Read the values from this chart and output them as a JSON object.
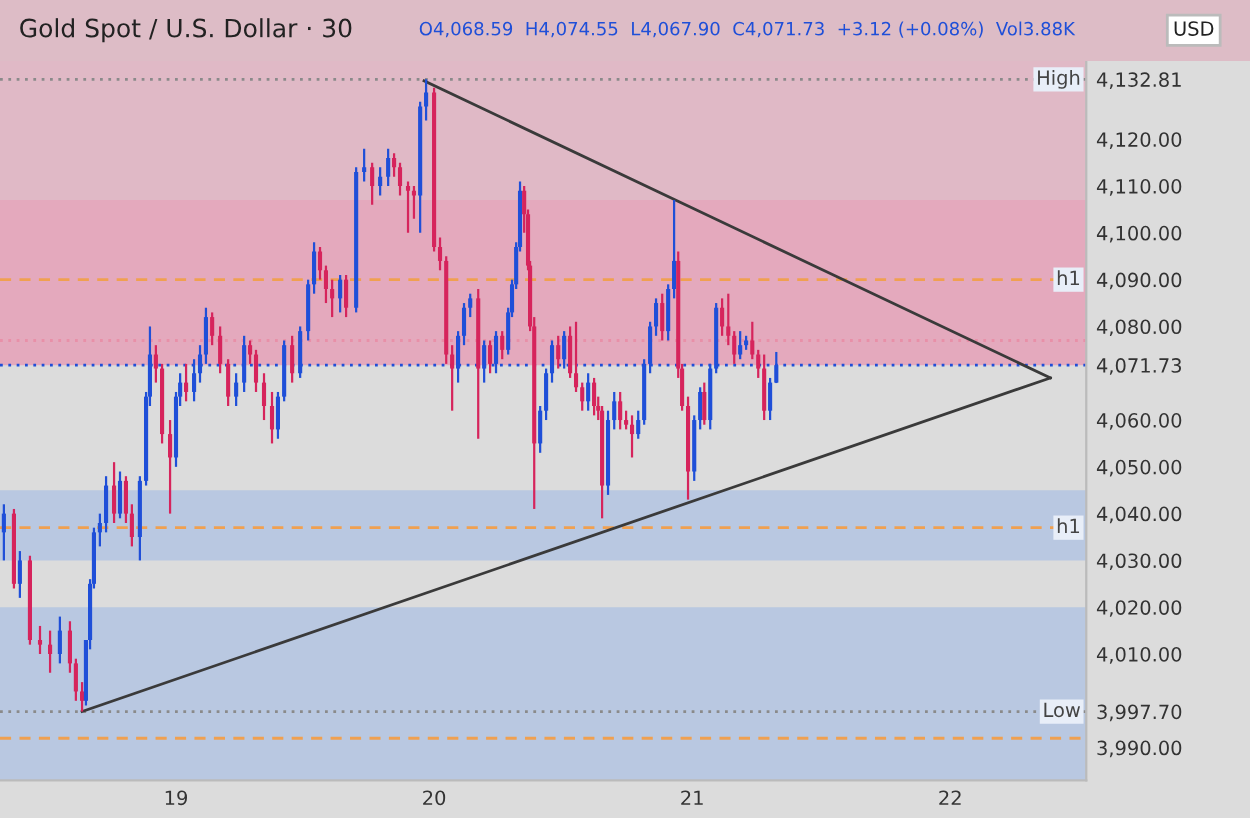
{
  "chart_data": {
    "type": "candlestick",
    "title": "Gold Spot / U.S. Dollar · 30",
    "subtitle": "O4,068.59  H4,074.55  L4,067.90  C4,071.73  +3.12 (+0.08%)  Vol3.88K",
    "annotations": [
      "USD"
    ],
    "x": [
      18.333,
      18.372,
      18.395,
      18.434,
      18.473,
      18.512,
      18.55,
      18.589,
      18.612,
      18.636,
      18.651,
      18.667,
      18.682,
      18.705,
      18.729,
      18.76,
      18.783,
      18.806,
      18.829,
      18.86,
      18.884,
      18.899,
      18.922,
      18.946,
      18.977,
      19.0,
      19.016,
      19.039,
      19.07,
      19.093,
      19.116,
      19.14,
      19.171,
      19.202,
      19.233,
      19.264,
      19.287,
      19.31,
      19.341,
      19.372,
      19.395,
      19.419,
      19.45,
      19.481,
      19.512,
      19.535,
      19.558,
      19.581,
      19.605,
      19.636,
      19.659,
      19.698,
      19.729,
      19.76,
      19.791,
      19.822,
      19.845,
      19.868,
      19.899,
      19.922,
      19.946,
      19.969,
      20.0,
      20.023,
      20.047,
      20.07,
      20.093,
      20.116,
      20.14,
      20.171,
      20.194,
      20.217,
      20.24,
      20.264,
      20.287,
      20.302,
      20.318,
      20.333,
      20.349,
      20.364,
      20.372,
      20.388,
      20.411,
      20.434,
      20.457,
      20.481,
      20.504,
      20.527,
      20.55,
      20.574,
      20.597,
      20.62,
      20.636,
      20.651,
      20.674,
      20.698,
      20.721,
      20.744,
      20.767,
      20.791,
      20.814,
      20.837,
      20.86,
      20.884,
      20.907,
      20.93,
      20.946,
      20.961,
      20.984,
      21.008,
      21.031,
      21.047,
      21.07,
      21.093,
      21.116,
      21.14,
      21.163,
      21.186,
      21.209,
      21.233,
      21.256,
      21.279,
      21.302,
      21.326
    ],
    "ohlc": [
      [
        4036,
        4042,
        4030,
        4040
      ],
      [
        4040,
        4041,
        4024,
        4025
      ],
      [
        4025,
        4032,
        4022,
        4030
      ],
      [
        4030,
        4031,
        4012,
        4013
      ],
      [
        4013,
        4016,
        4010,
        4012
      ],
      [
        4012,
        4015,
        4006,
        4010
      ],
      [
        4010,
        4018,
        4008,
        4015
      ],
      [
        4015,
        4017,
        4006,
        4008
      ],
      [
        4008,
        4009,
        4000,
        4002
      ],
      [
        4002,
        4004,
        3997.7,
        4000
      ],
      [
        4000,
        4013,
        3999,
        4013
      ],
      [
        4013,
        4026,
        4011,
        4025
      ],
      [
        4025,
        4037,
        4024,
        4036
      ],
      [
        4036,
        4040,
        4033,
        4038
      ],
      [
        4038,
        4048,
        4036,
        4046
      ],
      [
        4046,
        4051,
        4038,
        4040
      ],
      [
        4040,
        4049,
        4039,
        4047
      ],
      [
        4047,
        4048,
        4038,
        4040
      ],
      [
        4040,
        4042,
        4033,
        4035
      ],
      [
        4035,
        4048,
        4030,
        4047
      ],
      [
        4047,
        4066,
        4046,
        4065
      ],
      [
        4065,
        4080,
        4063,
        4074
      ],
      [
        4074,
        4076,
        4068,
        4071
      ],
      [
        4071,
        4072,
        4055,
        4057
      ],
      [
        4057,
        4060,
        4040,
        4052
      ],
      [
        4052,
        4066,
        4050,
        4065
      ],
      [
        4065,
        4070,
        4063,
        4068
      ],
      [
        4068,
        4072,
        4064,
        4066
      ],
      [
        4066,
        4073,
        4064,
        4070
      ],
      [
        4070,
        4076,
        4068,
        4074
      ],
      [
        4074,
        4084,
        4072,
        4082
      ],
      [
        4082,
        4083,
        4076,
        4078
      ],
      [
        4078,
        4080,
        4070,
        4072
      ],
      [
        4072,
        4073,
        4063,
        4065
      ],
      [
        4065,
        4070,
        4063,
        4068
      ],
      [
        4068,
        4078,
        4066,
        4076
      ],
      [
        4076,
        4077,
        4072,
        4074
      ],
      [
        4074,
        4075,
        4066,
        4068
      ],
      [
        4068,
        4070,
        4060,
        4063
      ],
      [
        4063,
        4066,
        4055,
        4058
      ],
      [
        4058,
        4066,
        4056,
        4065
      ],
      [
        4065,
        4077,
        4064,
        4076
      ],
      [
        4076,
        4078,
        4068,
        4070
      ],
      [
        4070,
        4080,
        4069,
        4079
      ],
      [
        4079,
        4090,
        4077,
        4089
      ],
      [
        4089,
        4098,
        4087,
        4096
      ],
      [
        4096,
        4097,
        4090,
        4092
      ],
      [
        4092,
        4093,
        4085,
        4088
      ],
      [
        4088,
        4090,
        4082,
        4086
      ],
      [
        4086,
        4091,
        4083,
        4090
      ],
      [
        4090,
        4091,
        4082,
        4084
      ],
      [
        4084,
        4114,
        4083,
        4113
      ],
      [
        4113,
        4118,
        4111,
        4114
      ],
      [
        4114,
        4115,
        4106,
        4110
      ],
      [
        4110,
        4114,
        4108,
        4112
      ],
      [
        4112,
        4118,
        4110,
        4116
      ],
      [
        4116,
        4117,
        4112,
        4114
      ],
      [
        4114,
        4115,
        4108,
        4110
      ],
      [
        4110,
        4111,
        4100,
        4109
      ],
      [
        4109,
        4110,
        4103,
        4108
      ],
      [
        4108,
        4128,
        4100,
        4127
      ],
      [
        4127,
        4132.81,
        4124,
        4130
      ],
      [
        4130,
        4131,
        4096,
        4097
      ],
      [
        4097,
        4099,
        4092,
        4094
      ],
      [
        4094,
        4095,
        4072,
        4074
      ],
      [
        4074,
        4076,
        4062,
        4071
      ],
      [
        4071,
        4079,
        4068,
        4078
      ],
      [
        4078,
        4085,
        4076,
        4084
      ],
      [
        4084,
        4087,
        4082,
        4086
      ],
      [
        4086,
        4088,
        4056,
        4071
      ],
      [
        4071,
        4077,
        4068,
        4076
      ],
      [
        4076,
        4077,
        4070,
        4072
      ],
      [
        4072,
        4079,
        4070,
        4078
      ],
      [
        4078,
        4079,
        4073,
        4075
      ],
      [
        4075,
        4084,
        4074,
        4083
      ],
      [
        4083,
        4090,
        4082,
        4089
      ],
      [
        4089,
        4098,
        4088,
        4097
      ],
      [
        4097,
        4111,
        4096,
        4109
      ],
      [
        4109,
        4110,
        4100,
        4104
      ],
      [
        4104,
        4105,
        4092,
        4093
      ],
      [
        4093,
        4094,
        4079,
        4080
      ],
      [
        4080,
        4082,
        4041,
        4055
      ],
      [
        4055,
        4063,
        4053,
        4062
      ],
      [
        4062,
        4071,
        4060,
        4070
      ],
      [
        4070,
        4077,
        4068,
        4076
      ],
      [
        4076,
        4078,
        4071,
        4073
      ],
      [
        4073,
        4079,
        4071,
        4078
      ],
      [
        4078,
        4080,
        4069,
        4070
      ],
      [
        4070,
        4081,
        4066,
        4067
      ],
      [
        4067,
        4068,
        4062,
        4064
      ],
      [
        4064,
        4070,
        4062,
        4068
      ],
      [
        4068,
        4069,
        4061,
        4063
      ],
      [
        4063,
        4065,
        4060,
        4062
      ],
      [
        4062,
        4063,
        4039,
        4046
      ],
      [
        4046,
        4062,
        4044,
        4060
      ],
      [
        4060,
        4066,
        4058,
        4064
      ],
      [
        4064,
        4066,
        4058,
        4060
      ],
      [
        4060,
        4062,
        4058,
        4059
      ],
      [
        4059,
        4061,
        4052,
        4057
      ],
      [
        4057,
        4062,
        4056,
        4060
      ],
      [
        4060,
        4073,
        4059,
        4072
      ],
      [
        4072,
        4081,
        4070,
        4080
      ],
      [
        4080,
        4086,
        4078,
        4085
      ],
      [
        4085,
        4087,
        4077,
        4079
      ],
      [
        4079,
        4089,
        4077,
        4088
      ],
      [
        4088,
        4107,
        4086,
        4094
      ],
      [
        4094,
        4096,
        4069,
        4071
      ],
      [
        4071,
        4072,
        4062,
        4063
      ],
      [
        4063,
        4065,
        4043,
        4049
      ],
      [
        4049,
        4061,
        4047,
        4060
      ],
      [
        4060,
        4067,
        4058,
        4066
      ],
      [
        4066,
        4068,
        4059,
        4060
      ],
      [
        4060,
        4072,
        4058,
        4071
      ],
      [
        4071,
        4085,
        4070,
        4084
      ],
      [
        4084,
        4086,
        4078,
        4080
      ],
      [
        4080,
        4087,
        4076,
        4078
      ],
      [
        4078,
        4079,
        4072,
        4074
      ],
      [
        4074,
        4079,
        4073,
        4076
      ],
      [
        4076,
        4078,
        4075,
        4077
      ],
      [
        4077,
        4081,
        4073,
        4074
      ],
      [
        4074,
        4075,
        4069,
        4071
      ],
      [
        4071,
        4074,
        4060,
        4062
      ],
      [
        4062,
        4069,
        4060,
        4068
      ],
      [
        4068,
        4074.55,
        4067.9,
        4071.73
      ]
    ],
    "colors": [
      "#1f4fd8",
      "#d6245c",
      "#1f4fd8",
      "#d6245c",
      "#d6245c",
      "#d6245c",
      "#1f4fd8",
      "#d6245c",
      "#d6245c",
      "#d6245c",
      "#1f4fd8",
      "#1f4fd8",
      "#1f4fd8",
      "#1f4fd8",
      "#1f4fd8",
      "#d6245c",
      "#1f4fd8",
      "#d6245c",
      "#d6245c",
      "#1f4fd8",
      "#1f4fd8",
      "#1f4fd8",
      "#d6245c",
      "#d6245c",
      "#d6245c",
      "#1f4fd8",
      "#1f4fd8",
      "#d6245c",
      "#1f4fd8",
      "#1f4fd8",
      "#1f4fd8",
      "#d6245c",
      "#d6245c",
      "#d6245c",
      "#1f4fd8",
      "#1f4fd8",
      "#d6245c",
      "#d6245c",
      "#d6245c",
      "#d6245c",
      "#1f4fd8",
      "#1f4fd8",
      "#d6245c",
      "#1f4fd8",
      "#1f4fd8",
      "#1f4fd8",
      "#d6245c",
      "#d6245c",
      "#d6245c",
      "#1f4fd8",
      "#d6245c",
      "#1f4fd8",
      "#1f4fd8",
      "#d6245c",
      "#1f4fd8",
      "#1f4fd8",
      "#d6245c",
      "#d6245c",
      "#d6245c",
      "#d6245c",
      "#1f4fd8",
      "#1f4fd8",
      "#d6245c",
      "#d6245c",
      "#d6245c",
      "#d6245c",
      "#1f4fd8",
      "#1f4fd8",
      "#1f4fd8",
      "#d6245c",
      "#1f4fd8",
      "#d6245c",
      "#1f4fd8",
      "#d6245c",
      "#1f4fd8",
      "#1f4fd8",
      "#1f4fd8",
      "#1f4fd8",
      "#d6245c",
      "#d6245c",
      "#d6245c",
      "#d6245c",
      "#1f4fd8",
      "#1f4fd8",
      "#1f4fd8",
      "#d6245c",
      "#1f4fd8",
      "#d6245c",
      "#d6245c",
      "#d6245c",
      "#1f4fd8",
      "#d6245c",
      "#d6245c",
      "#d6245c",
      "#1f4fd8",
      "#1f4fd8",
      "#d6245c",
      "#d6245c",
      "#d6245c",
      "#1f4fd8",
      "#1f4fd8",
      "#1f4fd8",
      "#1f4fd8",
      "#d6245c",
      "#1f4fd8",
      "#1f4fd8",
      "#d6245c",
      "#d6245c",
      "#d6245c",
      "#1f4fd8",
      "#1f4fd8",
      "#d6245c",
      "#1f4fd8",
      "#1f4fd8",
      "#d6245c",
      "#d6245c",
      "#d6245c",
      "#1f4fd8",
      "#1f4fd8",
      "#d6245c",
      "#d6245c",
      "#d6245c",
      "#1f4fd8",
      "#1f4fd8"
    ],
    "series": [
      {
        "type": "line",
        "color": "#3a3a3a",
        "x": [
          19.961,
          22.388
        ],
        "values": [
          4132.5,
          4069
        ]
      },
      {
        "type": "line",
        "color": "#3a3a3a",
        "x": [
          18.636,
          22.388
        ],
        "values": [
          3997.7,
          4069
        ]
      }
    ],
    "bands": [
      {
        "axis": "y",
        "from": 4100,
        "to": 4137,
        "color": "#e0b9c6"
      },
      {
        "axis": "y",
        "from": 3983,
        "to": 4020,
        "color": "#b9c8e1"
      },
      {
        "axis": "y",
        "from": 4030,
        "to": 4045,
        "color": "#b9c8e1"
      },
      {
        "axis": "y",
        "from": 4071.73,
        "to": 4107,
        "color": "#e4a9bd"
      }
    ],
    "ref_lines": [
      {
        "axis": "y",
        "value": 4132.81,
        "label": "High",
        "color": "#8a8a8a",
        "line_style": "dotted"
      },
      {
        "axis": "y",
        "value": 3997.7,
        "label": "Low",
        "color": "#8a8a8a",
        "line_style": "dotted"
      },
      {
        "axis": "y",
        "value": 4090,
        "label": "h1",
        "color": "#f0a050",
        "line_style": "dashed"
      },
      {
        "axis": "y",
        "value": 4037,
        "label": "h1",
        "color": "#f0a050",
        "line_style": "dashed"
      },
      {
        "axis": "y",
        "value": 4077,
        "color": "#e890a8",
        "line_style": "dotted"
      },
      {
        "axis": "y",
        "value": 3992,
        "color": "#f0a050",
        "line_style": "dashed"
      },
      {
        "axis": "y",
        "value": 4071.73,
        "color": "#1f4fd8",
        "line_style": "dotted"
      }
    ],
    "xlim": [
      18.318,
      22.527
    ],
    "xticks": [
      19,
      20,
      21,
      22
    ],
    "ylim": [
      3983,
      4137
    ],
    "yticks": [
      {
        "value": 3990,
        "label": "3,990.00"
      },
      {
        "value": 3997.7,
        "label": "3,997.70"
      },
      {
        "value": 4010,
        "label": "4,010.00"
      },
      {
        "value": 4020,
        "label": "4,020.00"
      },
      {
        "value": 4030,
        "label": "4,030.00"
      },
      {
        "value": 4040,
        "label": "4,040.00"
      },
      {
        "value": 4050,
        "label": "4,050.00"
      },
      {
        "value": 4060,
        "label": "4,060.00"
      },
      {
        "value": 4071.73,
        "label": "4,071.73"
      },
      {
        "value": 4080,
        "label": "4,080.00"
      },
      {
        "value": 4090,
        "label": "4,090.00"
      },
      {
        "value": 4100,
        "label": "4,100.00"
      },
      {
        "value": 4110,
        "label": "4,110.00"
      },
      {
        "value": 4120,
        "label": "4,120.00"
      },
      {
        "value": 4132.81,
        "label": "4,132.81"
      }
    ],
    "grid": false,
    "legend": false
  }
}
